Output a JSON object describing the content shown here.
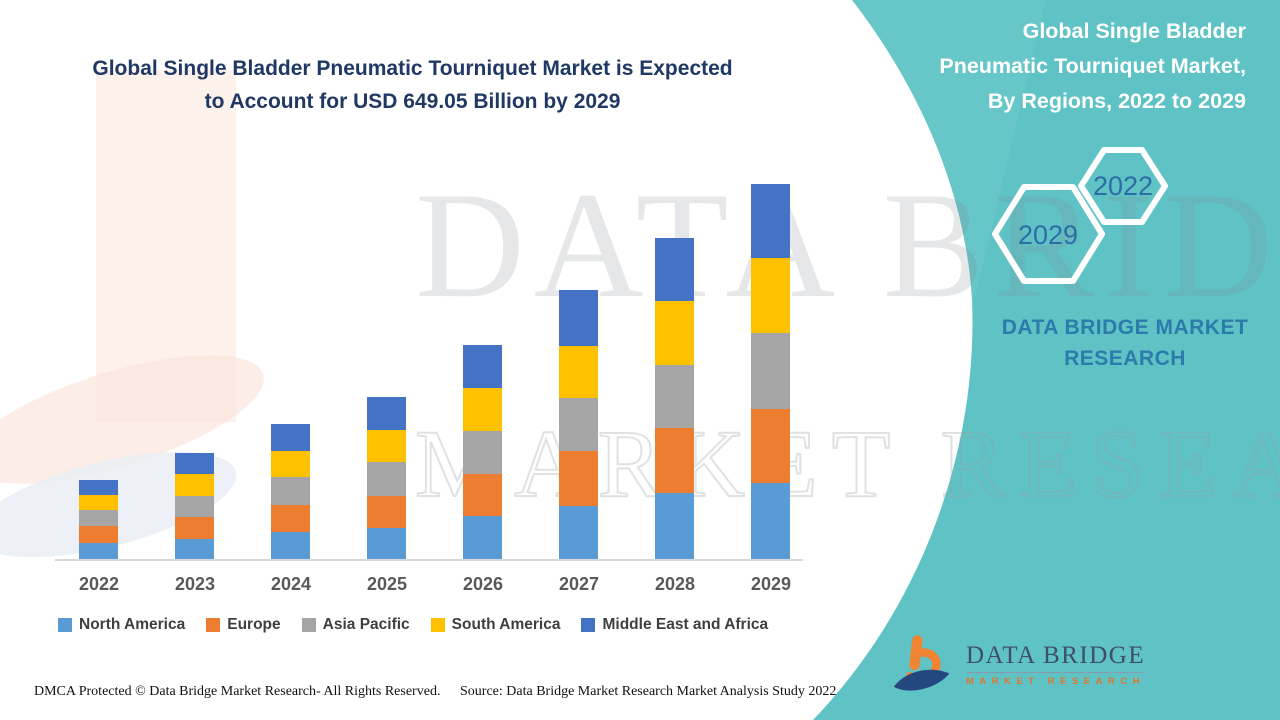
{
  "page": {
    "title_line1": "Global Single Bladder Pneumatic Tourniquet Market is Expected",
    "title_line2": "to Account for USD 649.05 Billion by 2029",
    "title_color": "#1f3864",
    "background_color": "#ffffff"
  },
  "chart_data": {
    "type": "bar",
    "stacked": true,
    "title": "Global Single Bladder Pneumatic Tourniquet Market is Expected to Account for USD 649.05 Billion by 2029",
    "xlabel": "",
    "ylabel": "",
    "y_axis_shown": false,
    "value_units": "relative height (no y-axis labels in chart)",
    "grid": false,
    "legend_position": "bottom",
    "categories": [
      "2022",
      "2023",
      "2024",
      "2025",
      "2026",
      "2027",
      "2028",
      "2029"
    ],
    "series": [
      {
        "name": "North America",
        "color": "#5B9BD5",
        "values": [
          16,
          20,
          27,
          31,
          43,
          53,
          66,
          76
        ]
      },
      {
        "name": "Europe",
        "color": "#ED7D31",
        "values": [
          17,
          22,
          27,
          32,
          42,
          55,
          65,
          74
        ]
      },
      {
        "name": "Asia Pacific",
        "color": "#A5A5A5",
        "values": [
          16,
          21,
          28,
          34,
          43,
          53,
          63,
          76
        ]
      },
      {
        "name": "South America",
        "color": "#FFC000",
        "values": [
          15,
          22,
          26,
          32,
          43,
          52,
          64,
          75
        ]
      },
      {
        "name": "Middle East and Africa",
        "color": "#4472C4",
        "values": [
          15,
          21,
          27,
          33,
          43,
          56,
          63,
          74
        ]
      }
    ],
    "totals": [
      79,
      106,
      135,
      162,
      214,
      269,
      321,
      375
    ]
  },
  "right_panel": {
    "background_color": "#5fc3c6",
    "heading_line1": "Global Single Bladder",
    "heading_line2": "Pneumatic Tourniquet Market,",
    "heading_line3": "By Regions, 2022 to 2029",
    "hexagon_small_year": "2022",
    "hexagon_large_year": "2029",
    "hexagon_year_color": "#2e6da4",
    "brand_line1": "DATA BRIDGE MARKET",
    "brand_line2": "RESEARCH"
  },
  "footer": {
    "left": "DMCA Protected © Data Bridge Market Research- All Rights Reserved.",
    "right": "Source: Data Bridge Market Research Market Analysis Study 2022"
  },
  "logo": {
    "name": "DATA BRIDGE",
    "subtitle": "MARKET  RESEARCH",
    "mark_orange": "#ef8432",
    "mark_blue": "#25477f"
  },
  "watermark": {
    "row1": "DATA BRIDGE",
    "row2": "MARKET RESEARCH"
  }
}
